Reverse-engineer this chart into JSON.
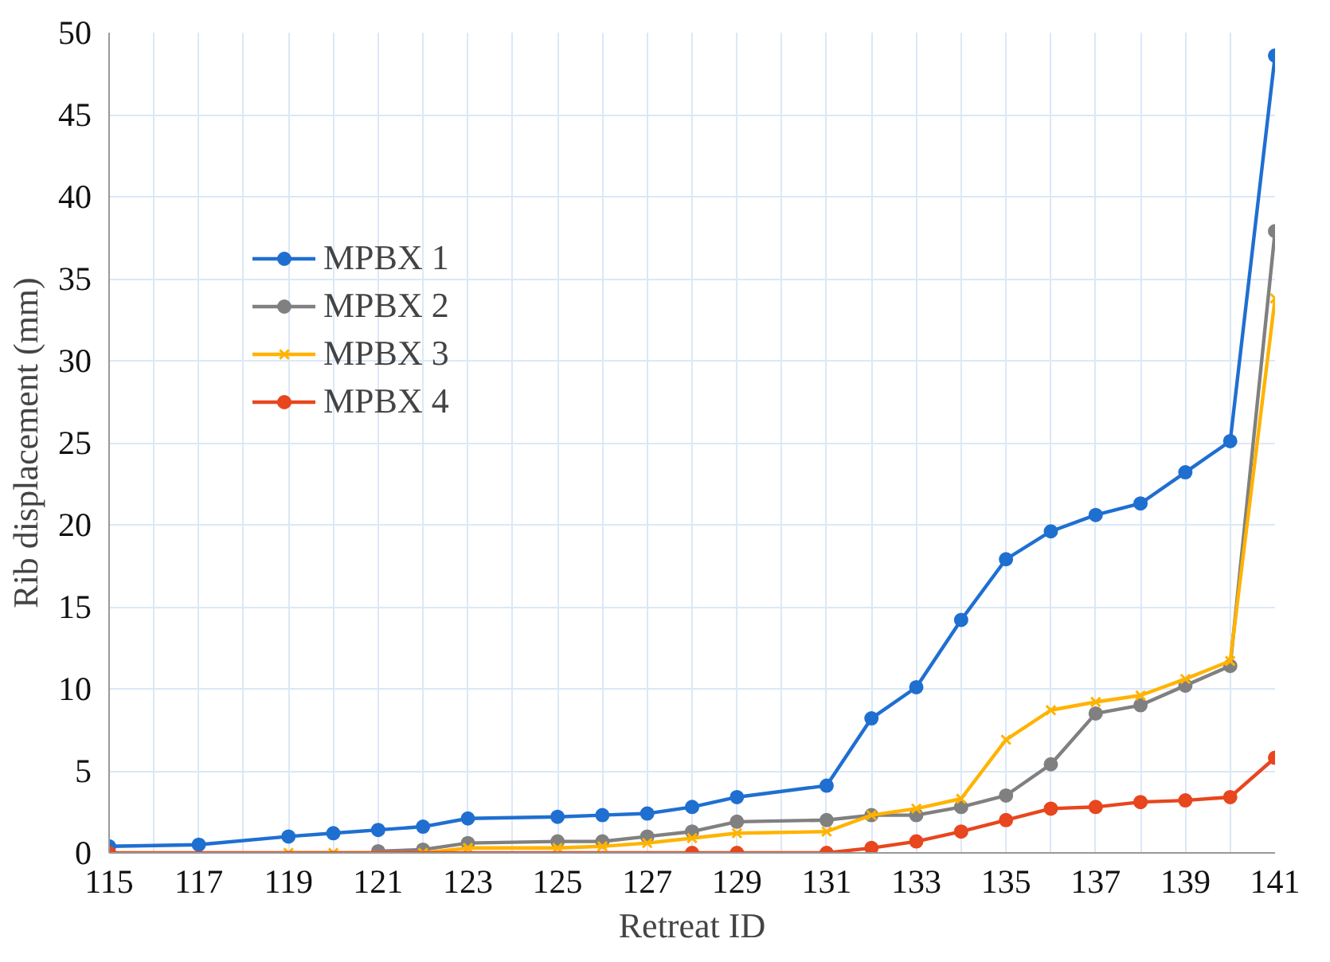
{
  "chart_data": {
    "type": "line",
    "xlabel": "Retreat ID",
    "ylabel": "Rib displacement (mm)",
    "xlim": [
      115,
      141
    ],
    "ylim": [
      0,
      50
    ],
    "xticks": [
      115,
      {
        "value": 116,
        "label": null
      },
      117,
      {
        "value": 118,
        "label": null
      },
      119,
      {
        "value": 120,
        "label": null
      },
      121,
      {
        "value": 122,
        "label": null
      },
      123,
      {
        "value": 124,
        "label": null
      },
      125,
      {
        "value": 126,
        "label": null
      },
      127,
      {
        "value": 128,
        "label": null
      },
      129,
      {
        "value": 130,
        "label": null
      },
      131,
      {
        "value": 132,
        "label": null
      },
      133,
      {
        "value": 134,
        "label": null
      },
      135,
      {
        "value": 136,
        "label": null
      },
      137,
      {
        "value": 138,
        "label": null
      },
      139,
      {
        "value": 140,
        "label": null
      },
      141
    ],
    "yticks": [
      0,
      5,
      10,
      15,
      20,
      25,
      30,
      35,
      40,
      45,
      50
    ],
    "grid": true,
    "legend": "top left",
    "line_style": "solid",
    "series": [
      {
        "name": "MPBX 1",
        "color": "#1f6fd1",
        "marker": "circle",
        "x": [
          115,
          117,
          119,
          120,
          121,
          122,
          123,
          125,
          126,
          127,
          128,
          129,
          131,
          132,
          133,
          134,
          135,
          136,
          137,
          138,
          139,
          140,
          141
        ],
        "values": [
          0.4,
          0.5,
          1.0,
          1.2,
          1.4,
          1.6,
          2.1,
          2.2,
          2.3,
          2.4,
          2.8,
          3.4,
          4.1,
          8.2,
          10.1,
          14.2,
          17.9,
          19.6,
          20.6,
          21.3,
          23.2,
          25.1,
          48.6
        ]
      },
      {
        "name": "MPBX 2",
        "color": "#808080",
        "marker": "circle",
        "x": [
          121,
          122,
          123,
          125,
          126,
          127,
          128,
          129,
          131,
          132,
          133,
          134,
          135,
          136,
          137,
          138,
          139,
          140,
          141
        ],
        "values": [
          0.1,
          0.2,
          0.6,
          0.7,
          0.7,
          1.0,
          1.3,
          1.9,
          2.0,
          2.3,
          2.3,
          2.8,
          3.5,
          5.4,
          8.5,
          9.0,
          10.2,
          11.4,
          37.9
        ]
      },
      {
        "name": "MPBX 3",
        "color": "#ffb300",
        "marker": "cross",
        "x": [
          119,
          120,
          122,
          123,
          125,
          126,
          127,
          128,
          129,
          131,
          132,
          133,
          134,
          135,
          136,
          137,
          138,
          139,
          140,
          141
        ],
        "values": [
          0,
          0,
          0,
          0.3,
          0.3,
          0.4,
          0.6,
          0.9,
          1.2,
          1.3,
          2.3,
          2.7,
          3.3,
          6.9,
          8.7,
          9.2,
          9.6,
          10.6,
          11.7,
          33.8
        ]
      },
      {
        "name": "MPBX 4",
        "color": "#e8461e",
        "marker": "circle",
        "x": [
          115,
          128,
          129,
          131,
          132,
          133,
          134,
          135,
          136,
          137,
          138,
          139,
          140,
          141
        ],
        "values": [
          0,
          0,
          0,
          0,
          0.3,
          0.7,
          1.3,
          2.0,
          2.7,
          2.8,
          3.1,
          3.2,
          3.4,
          5.8
        ]
      }
    ]
  }
}
